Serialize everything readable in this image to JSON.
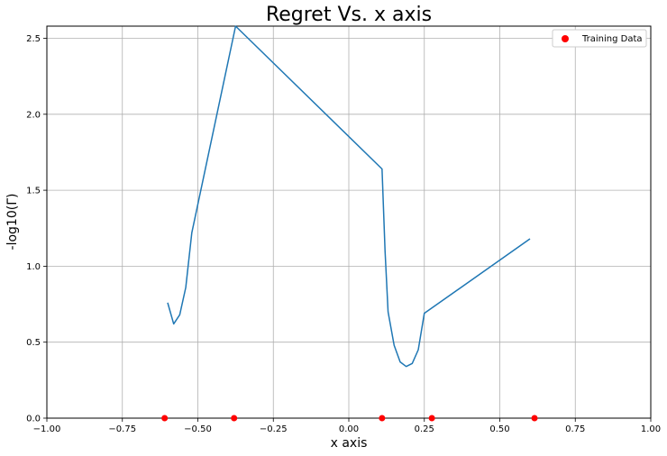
{
  "chart_data": {
    "type": "line",
    "title": "Regret Vs. x axis",
    "xlabel": "x axis",
    "ylabel": "-log10(Γ)",
    "xlim": [
      -1.0,
      1.0
    ],
    "ylim": [
      0.0,
      2.58
    ],
    "grid": true,
    "legend_position": "top-right",
    "x_ticks": [
      "−1.00",
      "−0.75",
      "−0.50",
      "−0.25",
      "0.00",
      "0.25",
      "0.50",
      "0.75",
      "1.00"
    ],
    "x_tick_values": [
      -1.0,
      -0.75,
      -0.5,
      -0.25,
      0.0,
      0.25,
      0.5,
      0.75,
      1.0
    ],
    "y_ticks": [
      "0.0",
      "0.5",
      "1.0",
      "1.5",
      "2.0",
      "2.5"
    ],
    "y_tick_values": [
      0.0,
      0.5,
      1.0,
      1.5,
      2.0,
      2.5
    ],
    "series": [
      {
        "kind": "line",
        "color": "#1f77b4",
        "x": [
          -0.6,
          -0.58,
          -0.56,
          -0.54,
          -0.52,
          -0.375,
          0.11,
          0.12,
          0.13,
          0.15,
          0.17,
          0.19,
          0.21,
          0.23,
          0.25,
          0.6
        ],
        "y": [
          0.76,
          0.62,
          0.68,
          0.86,
          1.22,
          2.58,
          1.64,
          1.1,
          0.7,
          0.48,
          0.37,
          0.34,
          0.36,
          0.45,
          0.69,
          1.18
        ]
      },
      {
        "kind": "scatter",
        "name": "Training Data",
        "color": "#ff0000",
        "x": [
          -0.61,
          -0.38,
          0.11,
          0.275,
          0.615
        ],
        "y": [
          0.0,
          0.0,
          0.0,
          0.0,
          0.0
        ]
      }
    ]
  }
}
